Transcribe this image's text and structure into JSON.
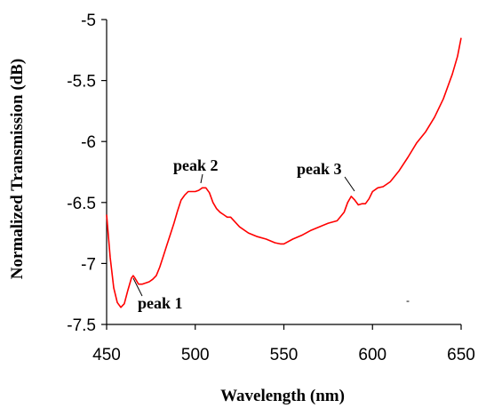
{
  "chart_data": {
    "type": "line",
    "title": "",
    "xlabel": "Wavelength (nm)",
    "ylabel": "Normalized Transmission (dB)",
    "xlim": [
      450,
      650
    ],
    "ylim": [
      -7.5,
      -5
    ],
    "xticks": [
      450,
      500,
      550,
      600,
      650
    ],
    "yticks": [
      -7.5,
      -7,
      -6.5,
      -6,
      -5.5,
      -5
    ],
    "xtick_labels": [
      "450",
      "500",
      "550",
      "600",
      "650"
    ],
    "ytick_labels": [
      "-7.5",
      "-7",
      "-6.5",
      "-6",
      "-5.5",
      "-5"
    ],
    "grid": false,
    "series": [
      {
        "color": "#ff0000",
        "x": [
          450,
          452,
          454,
          456,
          458,
          460,
          462,
          464,
          465,
          466,
          468,
          470,
          472,
          474,
          476,
          478,
          480,
          482,
          484,
          486,
          488,
          490,
          492,
          494,
          496,
          498,
          500,
          502,
          504,
          506,
          508,
          510,
          512,
          514,
          516,
          518,
          520,
          525,
          530,
          535,
          540,
          545,
          548,
          550,
          555,
          560,
          565,
          570,
          575,
          580,
          584,
          586,
          588,
          590,
          592,
          594,
          596,
          598,
          600,
          603,
          606,
          610,
          615,
          620,
          625,
          630,
          635,
          640,
          645,
          648,
          650
        ],
        "y": [
          -6.6,
          -6.95,
          -7.2,
          -7.32,
          -7.36,
          -7.33,
          -7.22,
          -7.12,
          -7.1,
          -7.12,
          -7.17,
          -7.17,
          -7.16,
          -7.15,
          -7.13,
          -7.1,
          -7.03,
          -6.94,
          -6.85,
          -6.76,
          -6.67,
          -6.57,
          -6.48,
          -6.44,
          -6.41,
          -6.41,
          -6.41,
          -6.4,
          -6.38,
          -6.38,
          -6.42,
          -6.5,
          -6.55,
          -6.58,
          -6.6,
          -6.62,
          -6.62,
          -6.7,
          -6.75,
          -6.78,
          -6.8,
          -6.83,
          -6.84,
          -6.84,
          -6.8,
          -6.77,
          -6.73,
          -6.7,
          -6.67,
          -6.65,
          -6.58,
          -6.5,
          -6.45,
          -6.48,
          -6.52,
          -6.51,
          -6.51,
          -6.47,
          -6.41,
          -6.38,
          -6.37,
          -6.33,
          -6.24,
          -6.13,
          -6.01,
          -5.92,
          -5.8,
          -5.65,
          -5.45,
          -5.3,
          -5.15
        ]
      }
    ],
    "annotations": [
      {
        "label": "peak 1",
        "x": 465,
        "y": -7.1
      },
      {
        "label": "peak 2",
        "x": 505,
        "y": -6.38
      },
      {
        "label": "peak 3",
        "x": 588,
        "y": -6.45
      }
    ],
    "stray_mark": "-"
  }
}
